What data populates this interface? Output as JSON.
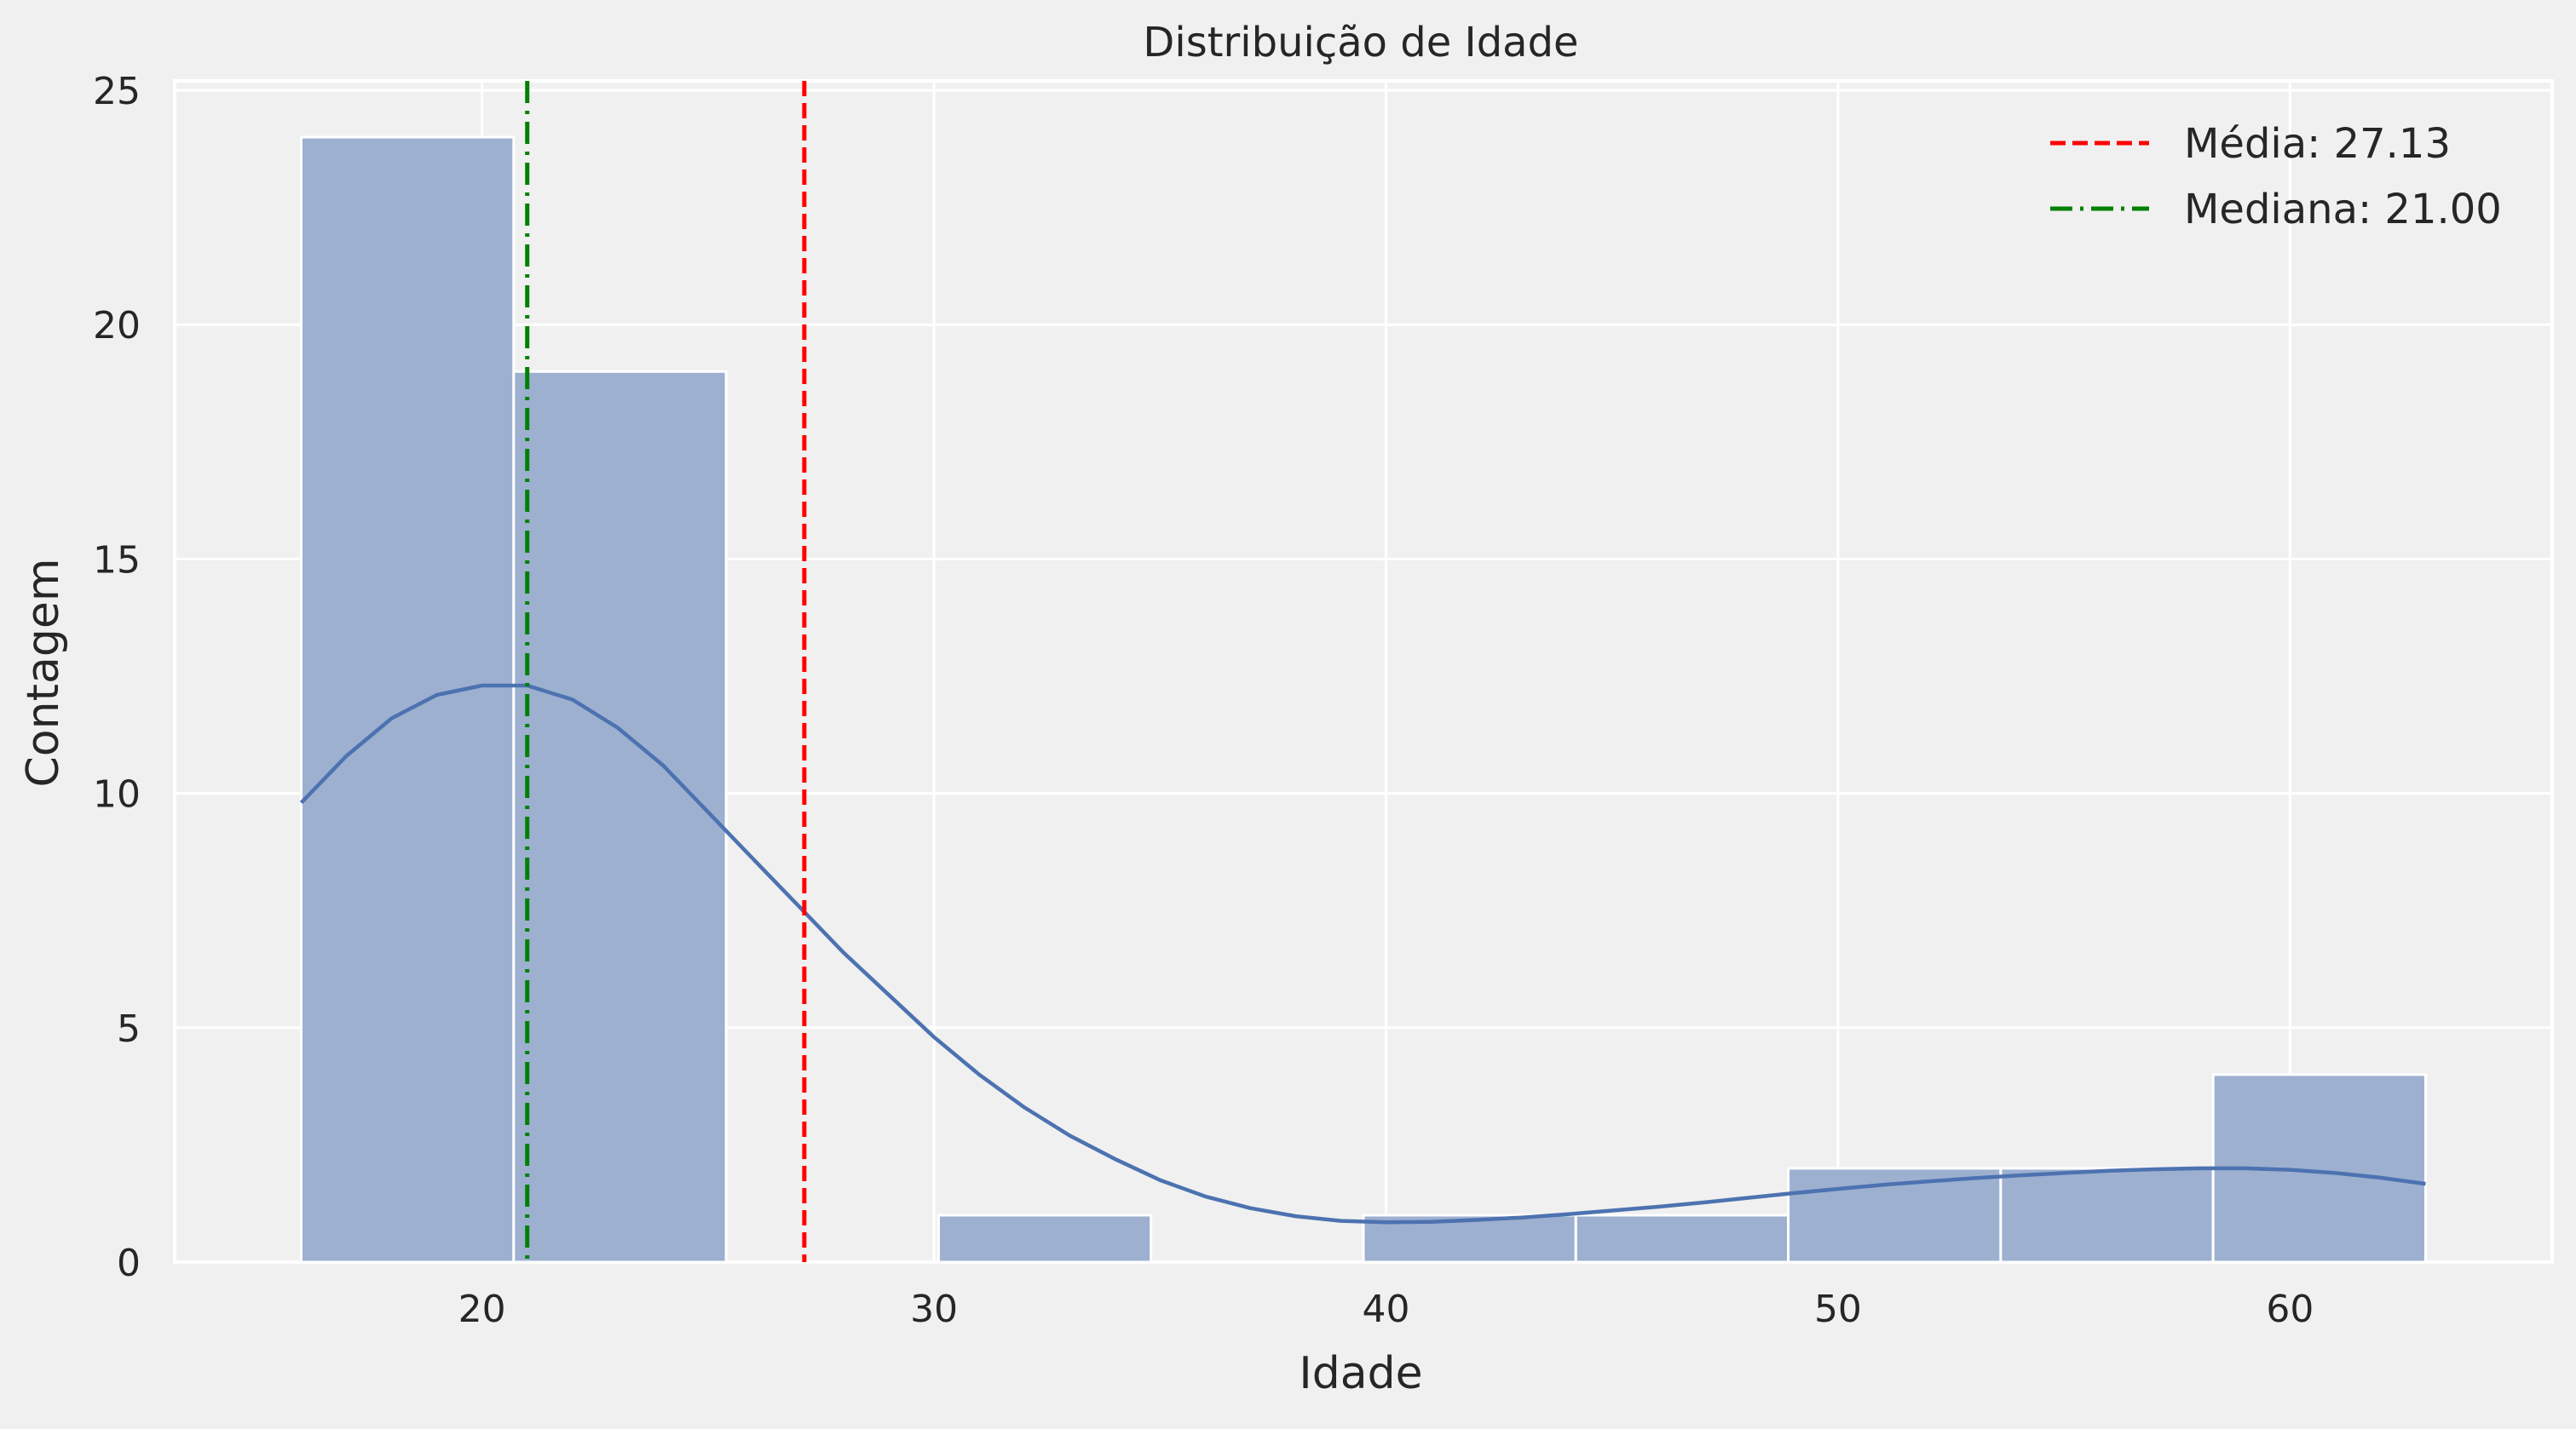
{
  "chart_data": {
    "type": "bar",
    "title": "Distribuição de Idade",
    "xlabel": "Idade",
    "ylabel": "Contagem",
    "xlim": [
      13.2,
      65.8
    ],
    "ylim": [
      0,
      25.2
    ],
    "xticks": [
      20,
      30,
      40,
      50,
      60
    ],
    "yticks": [
      0,
      5,
      10,
      15,
      20,
      25
    ],
    "grid": true,
    "legend_position": "top-right",
    "bins": [
      {
        "start": 16.0,
        "end": 20.7,
        "count": 24
      },
      {
        "start": 20.7,
        "end": 25.4,
        "count": 19
      },
      {
        "start": 25.4,
        "end": 30.1,
        "count": 0
      },
      {
        "start": 30.1,
        "end": 34.8,
        "count": 1
      },
      {
        "start": 34.8,
        "end": 39.5,
        "count": 0
      },
      {
        "start": 39.5,
        "end": 44.2,
        "count": 1
      },
      {
        "start": 44.2,
        "end": 48.9,
        "count": 1
      },
      {
        "start": 48.9,
        "end": 53.6,
        "count": 2
      },
      {
        "start": 53.6,
        "end": 58.3,
        "count": 2
      },
      {
        "start": 58.3,
        "end": 63.0,
        "count": 4
      }
    ],
    "kde": {
      "x": [
        16,
        17,
        18,
        19,
        20,
        21,
        22,
        23,
        24,
        25,
        26,
        27,
        28,
        29,
        30,
        31,
        32,
        33,
        34,
        35,
        36,
        37,
        38,
        39,
        40,
        41,
        42,
        43,
        44,
        45,
        46,
        47,
        48,
        49,
        50,
        51,
        52,
        53,
        54,
        55,
        56,
        57,
        58,
        59,
        60,
        61,
        62,
        63
      ],
      "y": [
        9.8,
        10.8,
        11.6,
        12.1,
        12.3,
        12.3,
        12.0,
        11.4,
        10.6,
        9.6,
        8.6,
        7.6,
        6.6,
        5.7,
        4.8,
        4.0,
        3.3,
        2.7,
        2.2,
        1.75,
        1.4,
        1.15,
        0.98,
        0.88,
        0.85,
        0.86,
        0.9,
        0.95,
        1.02,
        1.1,
        1.18,
        1.27,
        1.37,
        1.47,
        1.56,
        1.65,
        1.72,
        1.79,
        1.85,
        1.9,
        1.95,
        1.98,
        2.0,
        2.0,
        1.97,
        1.9,
        1.8,
        1.67
      ]
    },
    "series": [
      {
        "name": "Média: 27.13",
        "value": 27.13,
        "color": "#ff0000",
        "style": "dashed"
      },
      {
        "name": "Mediana: 21.00",
        "value": 21.0,
        "color": "#008000",
        "style": "dashdot"
      }
    ],
    "colors": {
      "bar_fill": "#9db0d0",
      "bar_stroke": "#ffffff",
      "kde_line": "#4c72b0",
      "background": "#f0f0f0",
      "grid": "#ffffff"
    }
  }
}
